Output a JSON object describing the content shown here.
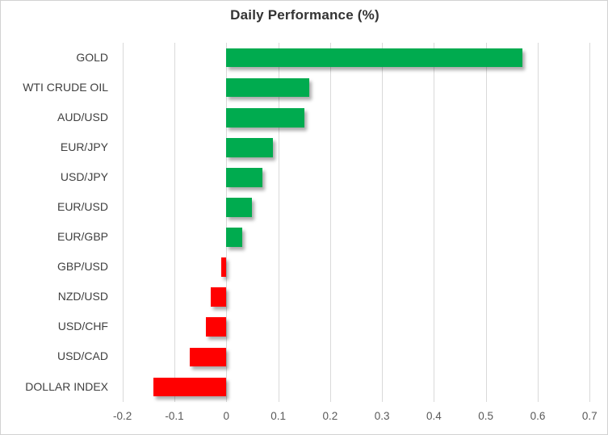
{
  "chart": {
    "title": "Daily Performance (%)",
    "colors": {
      "positive": "#00AB4F",
      "negative": "#FF0000",
      "gridline": "#D9D9D9",
      "title_text": "#333333",
      "category_text": "#404040",
      "tick_text": "#595959",
      "frame_border": "#D2D2D2"
    }
  },
  "chart_data": {
    "type": "bar",
    "orientation": "horizontal",
    "title": "Daily Performance (%)",
    "categories": [
      "GOLD",
      "WTI CRUDE OIL",
      "AUD/USD",
      "EUR/JPY",
      "USD/JPY",
      "EUR/USD",
      "EUR/GBP",
      "GBP/USD",
      "NZD/USD",
      "USD/CHF",
      "USD/CAD",
      "DOLLAR INDEX"
    ],
    "values": [
      0.57,
      0.16,
      0.15,
      0.09,
      0.07,
      0.05,
      0.03,
      -0.01,
      -0.03,
      -0.04,
      -0.07,
      -0.14
    ],
    "xlabel": "",
    "ylabel": "",
    "xlim": [
      -0.2,
      0.7
    ],
    "xticks": [
      -0.2,
      -0.1,
      0,
      0.1,
      0.2,
      0.3,
      0.4,
      0.5,
      0.6,
      0.7
    ],
    "xtick_labels": [
      "-0.2",
      "-0.1",
      "0",
      "0.1",
      "0.2",
      "0.3",
      "0.4",
      "0.5",
      "0.6",
      "0.7"
    ],
    "grid": "vertical",
    "legend": false,
    "positive_color": "#00AB4F",
    "negative_color": "#FF0000"
  }
}
